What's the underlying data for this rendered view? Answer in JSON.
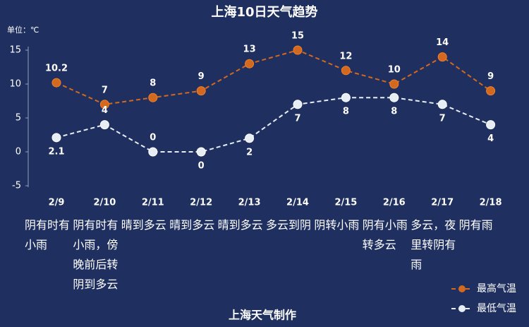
{
  "chart_data": {
    "type": "line",
    "title": "上海10日天气趋势",
    "unit_label": "单位：℃",
    "categories": [
      "2/9",
      "2/10",
      "2/11",
      "2/12",
      "2/13",
      "2/14",
      "2/15",
      "2/16",
      "2/17",
      "2/18"
    ],
    "weather": [
      "阴有时有小雨",
      "阴有时有小雨，傍晚前后转阴到多云",
      "晴到多云",
      "晴到多云",
      "晴到多云",
      "多云到阴",
      "阴转小雨",
      "阴有小雨转多云",
      "多云，夜里转阴有雨",
      "阴有雨"
    ],
    "series": [
      {
        "name": "最高气温",
        "color": "#d2691e",
        "values": [
          10.2,
          7,
          8,
          9,
          13,
          15,
          12,
          10,
          14,
          9
        ]
      },
      {
        "name": "最低气温",
        "color": "#e6edf5",
        "values": [
          2.1,
          4,
          0,
          0,
          2,
          7,
          8,
          8,
          7,
          4
        ]
      }
    ],
    "ylim": [
      -5,
      15
    ],
    "yticks": [
      -5,
      0,
      5,
      10,
      15
    ],
    "grid": false,
    "legend": "lower right",
    "footer": "上海天气制作"
  }
}
